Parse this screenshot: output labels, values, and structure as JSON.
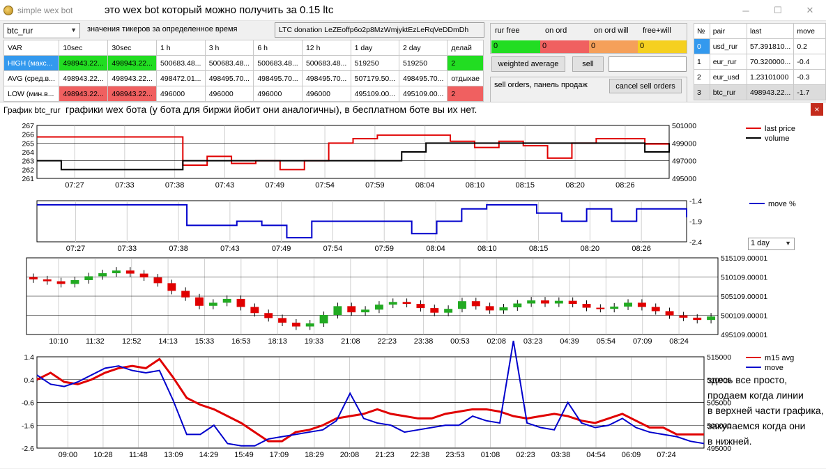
{
  "window": {
    "title": "simple wex bot",
    "annotation": "это wex bot который можно получить за 0.15 ltc"
  },
  "pair_select": "btc_rur",
  "ticker_label": "значения тикеров за определенное время",
  "donation": "LTC donation  LeZEoffp6o2p8MzWmjyktEzLeRqVeDDmDh",
  "var_table": {
    "headers": [
      "VAR",
      "10sec",
      "30sec",
      "1 h",
      "3 h",
      "6 h",
      "12 h",
      "1 day",
      "2 day",
      "делай"
    ],
    "rows": [
      [
        "HIGH (макс...",
        "498943.22...",
        "498943.22...",
        "500683.48...",
        "500683.48...",
        "500683.48...",
        "500683.48...",
        "519250",
        "519250",
        "2"
      ],
      [
        "AVG (сред.в...",
        "498943.22...",
        "498943.22...",
        "498472.01...",
        "498495.70...",
        "498495.70...",
        "498495.70...",
        "507179.50...",
        "498495.70...",
        "отдыхае"
      ],
      [
        "LOW (мин.в...",
        "498943.22...",
        "498943.22...",
        "496000",
        "496000",
        "496000",
        "496000",
        "495109.00...",
        "495109.00...",
        "2"
      ]
    ]
  },
  "balance": {
    "headers": [
      "rur free",
      "on ord",
      "on ord will",
      "free+will"
    ],
    "values": [
      "0",
      "0",
      "0",
      "0"
    ],
    "colors": [
      "#22dd22",
      "#f06060",
      "#f5a05a",
      "#f5d020"
    ]
  },
  "buttons": {
    "weighted_average": "weighted average",
    "sell": "sell",
    "cancel_sell": "cancel sell orders"
  },
  "sell_orders_label": "sell orders, панель продаж",
  "pair_table": {
    "headers": [
      "№",
      "pair",
      "last",
      "move"
    ],
    "rows": [
      [
        "0",
        "usd_rur",
        "57.391810...",
        "0.2"
      ],
      [
        "1",
        "eur_rur",
        "70.320000...",
        "-0.4"
      ],
      [
        "2",
        "eur_usd",
        "1.23101000",
        "-0.3"
      ],
      [
        "3",
        "btc_rur",
        "498943.22...",
        "-1.7"
      ]
    ]
  },
  "chart_window": {
    "title": "График btc_rur",
    "description": "графики wex бота (у бота для биржи йобит они аналогичны), в бесплатном боте вы их нет.",
    "close": "×"
  },
  "range_select": "1 day",
  "right_note": [
    "здесь все просто,",
    "продаем когда линии",
    "в верхней части графика,",
    "закупаемся когда они",
    "в нижней."
  ],
  "chart_data": [
    {
      "type": "line",
      "xlabels": [
        "07:27",
        "07:33",
        "07:38",
        "07:43",
        "07:49",
        "07:54",
        "07:59",
        "08:04",
        "08:10",
        "08:15",
        "08:20",
        "08:26"
      ],
      "left_ticks": [
        "267",
        "266",
        "265",
        "264",
        "263",
        "262",
        "261"
      ],
      "right_ticks": [
        "501000",
        "499000",
        "497000",
        "495000"
      ],
      "series": [
        {
          "name": "last price",
          "color": "#e00000",
          "axis": "right",
          "values": [
            499700,
            499700,
            499700,
            499700,
            499700,
            499700,
            496500,
            497500,
            496700,
            497000,
            496000,
            497000,
            499000,
            499500,
            499900,
            499900,
            499900,
            499200,
            498500,
            499200,
            498700,
            497300,
            499000,
            499500,
            499500,
            498900,
            498900
          ]
        },
        {
          "name": "volume",
          "color": "#000",
          "axis": "left",
          "values": [
            263,
            262,
            262,
            262,
            262,
            262,
            263,
            263,
            263,
            263,
            263,
            263,
            263,
            263,
            263,
            264,
            265,
            265,
            265,
            265,
            265,
            265,
            265,
            265,
            265,
            264,
            265
          ]
        }
      ]
    },
    {
      "type": "line",
      "xlabels": [
        "07:27",
        "07:33",
        "07:38",
        "07:43",
        "07:49",
        "07:54",
        "07:59",
        "08:04",
        "08:10",
        "08:15",
        "08:20",
        "08:26"
      ],
      "right_ticks": [
        "-1.4",
        "-1.9",
        "-2.4"
      ],
      "ylim": [
        -2.4,
        -1.4
      ],
      "series": [
        {
          "name": "move %",
          "color": "#0000cc",
          "values": [
            -1.5,
            -1.5,
            -1.5,
            -1.5,
            -1.5,
            -1.5,
            -2.0,
            -2.0,
            -1.9,
            -2.0,
            -2.3,
            -1.9,
            -1.9,
            -1.9,
            -1.9,
            -2.2,
            -1.9,
            -1.6,
            -1.5,
            -1.5,
            -1.7,
            -1.9,
            -1.6,
            -1.9,
            -1.6,
            -1.6,
            -1.8
          ]
        }
      ]
    },
    {
      "type": "candlestick",
      "xlabels": [
        "10:10",
        "11:32",
        "12:52",
        "14:13",
        "15:33",
        "16:53",
        "18:13",
        "19:33",
        "21:08",
        "22:23",
        "23:38",
        "00:53",
        "02:08",
        "03:23",
        "04:39",
        "05:54",
        "07:09",
        "08:24"
      ],
      "right_ticks": [
        "515109.00001",
        "510109.00001",
        "505109.00001",
        "500109.00001",
        "495109.00001"
      ],
      "ylim": [
        495109,
        515109
      ],
      "candles": [
        [
          510109,
          509500
        ],
        [
          509500,
          509000
        ],
        [
          509000,
          508300
        ],
        [
          508300,
          509300
        ],
        [
          509300,
          510300
        ],
        [
          510300,
          511100
        ],
        [
          511100,
          511800
        ],
        [
          511800,
          511000
        ],
        [
          511000,
          510000
        ],
        [
          510000,
          508500
        ],
        [
          508500,
          506500
        ],
        [
          506500,
          504800
        ],
        [
          504800,
          502600
        ],
        [
          502600,
          503400
        ],
        [
          503400,
          504400
        ],
        [
          504400,
          502300
        ],
        [
          502300,
          500700
        ],
        [
          500700,
          499400
        ],
        [
          499400,
          498200
        ],
        [
          498200,
          497200
        ],
        [
          497200,
          498000
        ],
        [
          498000,
          500200
        ],
        [
          500200,
          502500
        ],
        [
          502500,
          500900
        ],
        [
          500900,
          501600
        ],
        [
          501600,
          502900
        ],
        [
          502900,
          503600
        ],
        [
          503600,
          503100
        ],
        [
          503100,
          502000
        ],
        [
          502000,
          500800
        ],
        [
          500800,
          501800
        ],
        [
          501800,
          503800
        ],
        [
          503800,
          502500
        ],
        [
          502500,
          501400
        ],
        [
          501400,
          502200
        ],
        [
          502200,
          503200
        ],
        [
          503200,
          504000
        ],
        [
          504000,
          503200
        ],
        [
          503200,
          503900
        ],
        [
          503900,
          503100
        ],
        [
          503100,
          502100
        ],
        [
          502100,
          501800
        ],
        [
          501800,
          502400
        ],
        [
          502400,
          503400
        ],
        [
          503400,
          502300
        ],
        [
          502300,
          501200
        ],
        [
          501200,
          500100
        ],
        [
          500100,
          499500
        ],
        [
          499500,
          498900
        ],
        [
          498900,
          499800
        ]
      ]
    },
    {
      "type": "line",
      "xlabels": [
        "09:00",
        "10:28",
        "11:48",
        "13:09",
        "14:29",
        "15:49",
        "17:09",
        "18:29",
        "20:08",
        "21:23",
        "22:38",
        "23:53",
        "01:08",
        "02:23",
        "03:38",
        "04:54",
        "06:09",
        "07:24"
      ],
      "left_ticks": [
        "1.4",
        "0.4",
        "-0.6",
        "-1.6",
        "-2.6"
      ],
      "right_ticks": [
        "515000",
        "510000",
        "505000",
        "500000",
        "495000"
      ],
      "series": [
        {
          "name": "m15 avg",
          "color": "#e00000",
          "values": [
            0.4,
            0.7,
            0.3,
            0.2,
            0.4,
            0.7,
            0.9,
            1.0,
            0.9,
            1.3,
            0.5,
            -0.4,
            -0.7,
            -0.9,
            -1.2,
            -1.5,
            -1.9,
            -2.3,
            -2.3,
            -1.9,
            -1.8,
            -1.6,
            -1.3,
            -1.2,
            -1.1,
            -0.9,
            -1.1,
            -1.2,
            -1.3,
            -1.3,
            -1.1,
            -1.0,
            -0.9,
            -0.9,
            -1.0,
            -1.2,
            -1.3,
            -1.2,
            -1.1,
            -1.2,
            -1.4,
            -1.5,
            -1.3,
            -1.1,
            -1.4,
            -1.7,
            -1.7,
            -2.0,
            -2.0,
            -2.0
          ]
        },
        {
          "name": "move",
          "color": "#0000cc",
          "values": [
            0.6,
            0.2,
            0.1,
            0.3,
            0.6,
            0.9,
            1.0,
            0.8,
            0.7,
            0.8,
            -0.5,
            -2.0,
            -2.0,
            -1.6,
            -2.4,
            -2.5,
            -2.5,
            -2.2,
            -2.1,
            -2.0,
            -1.9,
            -1.8,
            -1.4,
            -0.2,
            -1.3,
            -1.5,
            -1.6,
            -1.9,
            -1.8,
            -1.7,
            -1.6,
            -1.6,
            -1.2,
            -1.4,
            -1.5,
            2.1,
            -1.5,
            -1.7,
            -1.8,
            -0.6,
            -1.5,
            -1.7,
            -1.6,
            -1.3,
            -1.7,
            -1.9,
            -2.0,
            -2.1,
            -2.3,
            -2.4
          ]
        }
      ]
    }
  ]
}
